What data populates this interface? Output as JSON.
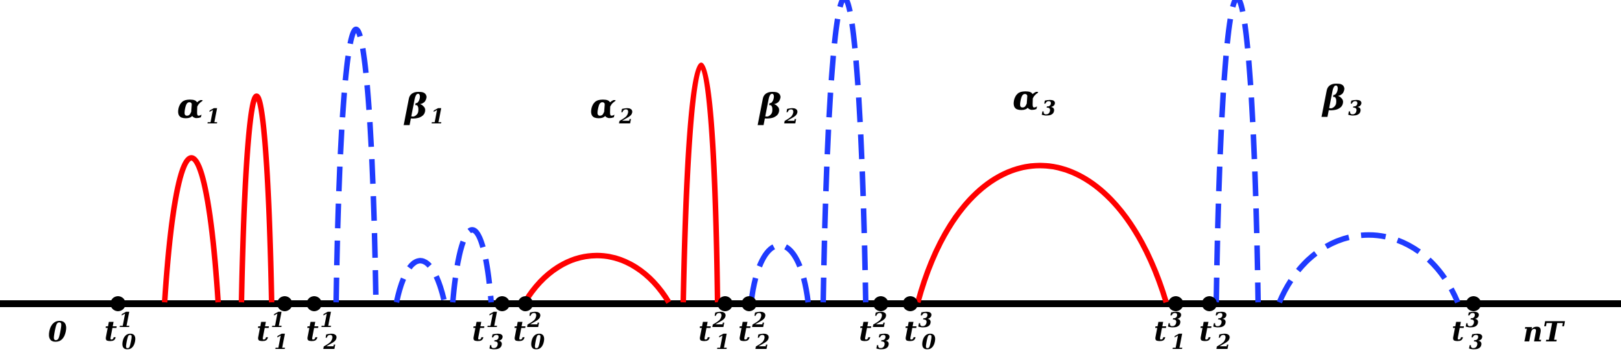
{
  "colors": {
    "axis": "#000000",
    "alpha_curves": "#ff0000",
    "beta_curves": "#1f3bff",
    "background": "#ffffff"
  },
  "axis": {
    "origin_label": "0",
    "end_label": "nT"
  },
  "interval_labels": [
    {
      "id": "alpha1",
      "symbol": "α",
      "sub": "1",
      "color": "alpha_curves"
    },
    {
      "id": "beta1",
      "symbol": "β",
      "sub": "1",
      "color": "beta_curves"
    },
    {
      "id": "alpha2",
      "symbol": "α",
      "sub": "2",
      "color": "alpha_curves"
    },
    {
      "id": "beta2",
      "symbol": "β",
      "sub": "2",
      "color": "beta_curves"
    },
    {
      "id": "alpha3",
      "symbol": "α",
      "sub": "3",
      "color": "alpha_curves"
    },
    {
      "id": "beta3",
      "symbol": "β",
      "sub": "3",
      "color": "beta_curves"
    }
  ],
  "points": [
    {
      "id": "t0-1",
      "base": "t",
      "sub": "0",
      "sup": "1"
    },
    {
      "id": "t1-1",
      "base": "t",
      "sub": "1",
      "sup": "1"
    },
    {
      "id": "t2-1",
      "base": "t",
      "sub": "2",
      "sup": "1"
    },
    {
      "id": "t3-1",
      "base": "t",
      "sub": "3",
      "sup": "1"
    },
    {
      "id": "t0-2",
      "base": "t",
      "sub": "0",
      "sup": "2"
    },
    {
      "id": "t1-2",
      "base": "t",
      "sub": "1",
      "sup": "2"
    },
    {
      "id": "t2-2",
      "base": "t",
      "sub": "2",
      "sup": "2"
    },
    {
      "id": "t3-2",
      "base": "t",
      "sub": "3",
      "sup": "2"
    },
    {
      "id": "t0-3",
      "base": "t",
      "sub": "0",
      "sup": "3"
    },
    {
      "id": "t1-3",
      "base": "t",
      "sub": "1",
      "sup": "3"
    },
    {
      "id": "t2-3",
      "base": "t",
      "sub": "2",
      "sup": "3"
    },
    {
      "id": "t3-3",
      "base": "t",
      "sub": "3",
      "sup": "3"
    }
  ],
  "arches": [
    {
      "id": "alpha1-arch-a",
      "style": "solid",
      "color": "alpha_curves"
    },
    {
      "id": "alpha1-arch-b",
      "style": "solid",
      "color": "alpha_curves"
    },
    {
      "id": "beta1-arch-a",
      "style": "dashed",
      "color": "beta_curves"
    },
    {
      "id": "beta1-arch-b",
      "style": "dashed",
      "color": "beta_curves"
    },
    {
      "id": "beta1-arch-c",
      "style": "dashed",
      "color": "beta_curves"
    },
    {
      "id": "alpha2-arch-a",
      "style": "solid",
      "color": "alpha_curves"
    },
    {
      "id": "alpha2-arch-b",
      "style": "solid",
      "color": "alpha_curves"
    },
    {
      "id": "beta2-arch-a",
      "style": "dashed",
      "color": "beta_curves"
    },
    {
      "id": "beta2-arch-b",
      "style": "dashed",
      "color": "beta_curves"
    },
    {
      "id": "alpha3-arch",
      "style": "solid",
      "color": "alpha_curves"
    },
    {
      "id": "beta3-arch-a",
      "style": "dashed",
      "color": "beta_curves"
    },
    {
      "id": "beta3-arch-b",
      "style": "dashed",
      "color": "beta_curves"
    }
  ]
}
